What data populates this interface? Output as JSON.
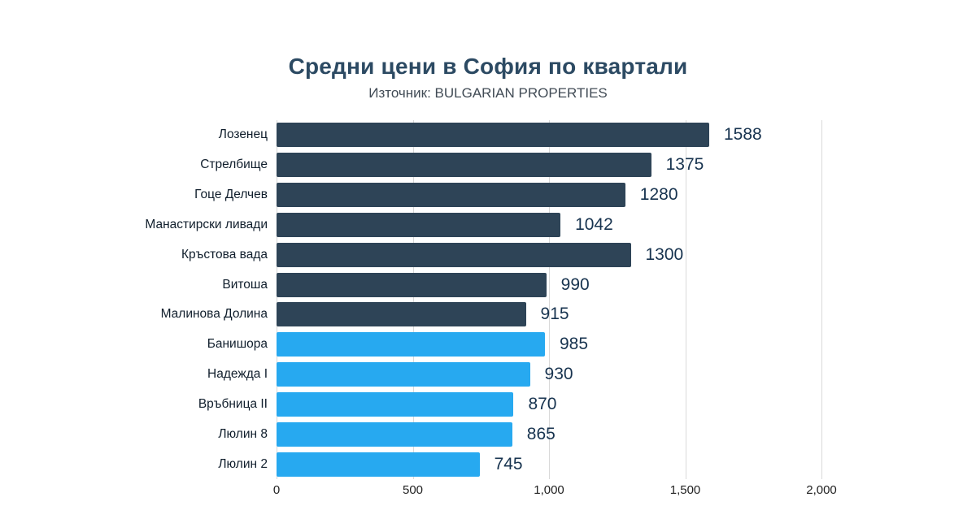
{
  "title": "Средни цени в София по квартали",
  "subtitle": "Източник: BULGARIAN PROPERTIES",
  "chart_data": {
    "type": "bar",
    "orientation": "horizontal",
    "title": "Средни цени в София по квартали",
    "subtitle": "Източник: BULGARIAN PROPERTIES",
    "categories": [
      "Лозенец",
      "Стрелбище",
      "Гоце Делчев",
      "Манастирски ливади",
      "Кръстова вада",
      "Витоша",
      "Малинова Долина",
      "Банишора",
      "Надежда I",
      "Връбница II",
      "Люлин 8",
      "Люлин 2"
    ],
    "values": [
      1588,
      1375,
      1280,
      1042,
      1300,
      990,
      915,
      985,
      930,
      870,
      865,
      745
    ],
    "bar_groups": [
      "dark",
      "dark",
      "dark",
      "dark",
      "dark",
      "dark",
      "dark",
      "light",
      "light",
      "light",
      "light",
      "light"
    ],
    "colors": {
      "dark": "#2e4457",
      "light": "#27a9f0"
    },
    "value_label_color": "#17334f",
    "grid_color": "#d9d9d9",
    "xlim": [
      0,
      2000
    ],
    "x_ticks": [
      0,
      500,
      1000,
      1500,
      2000
    ],
    "x_tick_labels": [
      "0",
      "500",
      "1,000",
      "1,500",
      "2,000"
    ],
    "grid": true,
    "legend": false
  }
}
